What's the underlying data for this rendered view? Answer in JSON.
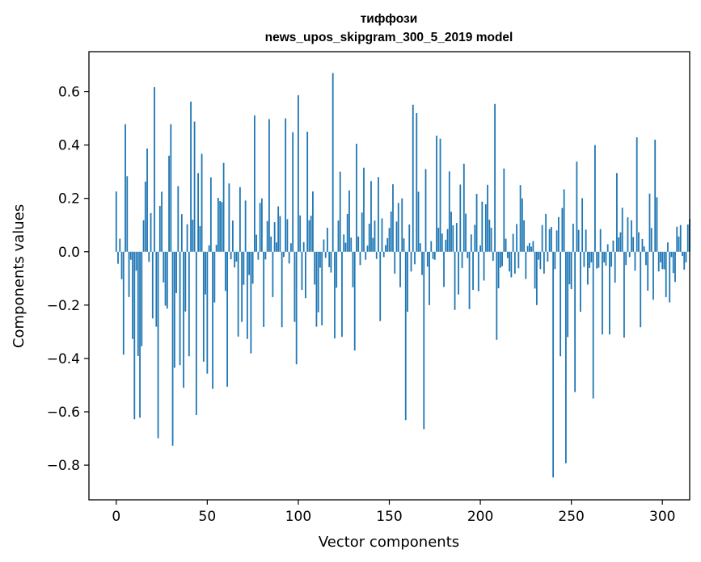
{
  "chart_data": {
    "type": "bar",
    "title": "тиффози",
    "subtitle": "news_upos_skipgram_300_5_2019 model",
    "xlabel": "Vector components",
    "ylabel": "Components values",
    "xlim": [
      -15,
      315
    ],
    "ylim": [
      -0.93,
      0.75
    ],
    "xticks": [
      0,
      50,
      100,
      150,
      200,
      250,
      300
    ],
    "xtick_labels": [
      "0",
      "50",
      "100",
      "150",
      "200",
      "250",
      "300"
    ],
    "yticks": [
      -0.8,
      -0.6,
      -0.4,
      -0.2,
      0.0,
      0.2,
      0.4,
      0.6
    ],
    "ytick_labels": [
      "−0.8",
      "−0.6",
      "−0.4",
      "−0.2",
      "0.0",
      "0.2",
      "0.4",
      "0.6"
    ],
    "grid": false,
    "bar_color": "#1f77b4",
    "values": [
      0.226,
      -0.045,
      0.049,
      -0.103,
      -0.386,
      0.478,
      0.283,
      -0.17,
      -0.03,
      -0.327,
      -0.628,
      -0.071,
      -0.391,
      -0.622,
      -0.354,
      0.118,
      0.263,
      0.387,
      -0.038,
      0.145,
      -0.25,
      0.617,
      -0.281,
      -0.699,
      0.172,
      0.225,
      -0.115,
      -0.202,
      -0.213,
      0.36,
      0.478,
      -0.727,
      -0.435,
      -0.155,
      0.246,
      -0.425,
      0.141,
      -0.51,
      -0.224,
      0.103,
      -0.392,
      0.563,
      0.12,
      0.488,
      -0.612,
      0.295,
      0.096,
      0.367,
      -0.412,
      -0.16,
      -0.457,
      0.024,
      0.279,
      -0.514,
      -0.19,
      0.026,
      0.202,
      0.19,
      0.186,
      0.333,
      -0.147,
      -0.506,
      0.256,
      -0.028,
      0.117,
      -0.059,
      -0.037,
      -0.318,
      0.242,
      -0.263,
      -0.124,
      0.192,
      -0.327,
      -0.087,
      -0.381,
      -0.12,
      0.511,
      0.064,
      -0.03,
      0.183,
      0.2,
      -0.282,
      -0.029,
      0.115,
      0.497,
      0.057,
      -0.17,
      0.111,
      0.035,
      0.17,
      0.134,
      -0.283,
      -0.02,
      0.5,
      0.122,
      -0.044,
      0.032,
      0.448,
      -0.263,
      -0.422,
      0.587,
      0.136,
      -0.143,
      0.036,
      -0.174,
      0.45,
      0.118,
      0.135,
      0.226,
      -0.123,
      -0.281,
      -0.227,
      -0.06,
      -0.276,
      0.046,
      -0.023,
      0.09,
      -0.058,
      -0.078,
      0.67,
      -0.325,
      -0.135,
      0.117,
      0.3,
      -0.319,
      0.065,
      0.034,
      0.142,
      0.23,
      0.053,
      -0.133,
      -0.37,
      0.405,
      0.057,
      -0.05,
      0.147,
      0.315,
      -0.03,
      0.023,
      0.105,
      0.265,
      0.052,
      0.117,
      -0.027,
      0.28,
      -0.26,
      0.125,
      -0.02,
      0.025,
      0.051,
      0.089,
      0.151,
      0.253,
      -0.082,
      0.113,
      0.183,
      -0.133,
      0.2,
      0.05,
      -0.631,
      -0.225,
      0.102,
      -0.074,
      0.551,
      -0.047,
      0.52,
      0.225,
      0.032,
      -0.087,
      -0.665,
      0.31,
      -0.056,
      -0.2,
      0.04,
      -0.027,
      -0.03,
      0.435,
      0.09,
      0.424,
      0.068,
      -0.132,
      0.045,
      0.085,
      0.301,
      0.15,
      0.099,
      -0.218,
      0.108,
      -0.16,
      0.252,
      -0.061,
      0.33,
      0.143,
      -0.024,
      -0.215,
      0.065,
      -0.143,
      0.101,
      0.217,
      -0.148,
      0.024,
      0.188,
      -0.108,
      0.178,
      0.251,
      0.12,
      0.09,
      -0.034,
      0.554,
      -0.33,
      -0.137,
      -0.06,
      -0.054,
      0.312,
      0.049,
      -0.024,
      -0.074,
      -0.096,
      0.067,
      -0.082,
      0.104,
      -0.062,
      0.25,
      0.2,
      0.118,
      -0.102,
      0.022,
      0.033,
      0.019,
      0.04,
      -0.138,
      -0.2,
      -0.03,
      -0.065,
      0.1,
      -0.082,
      0.142,
      -0.037,
      0.085,
      0.093,
      -0.846,
      -0.065,
      0.08,
      0.13,
      -0.392,
      0.164,
      0.234,
      -0.793,
      -0.32,
      -0.122,
      -0.14,
      0.105,
      -0.526,
      0.338,
      0.082,
      -0.225,
      0.201,
      -0.057,
      0.083,
      -0.123,
      -0.061,
      -0.04,
      -0.55,
      0.4,
      -0.063,
      -0.06,
      0.085,
      -0.31,
      -0.04,
      -0.052,
      0.028,
      -0.31,
      -0.056,
      0.042,
      -0.116,
      0.295,
      0.054,
      0.073,
      0.165,
      -0.322,
      -0.05,
      0.129,
      -0.02,
      0.118,
      0.055,
      -0.071,
      0.429,
      0.073,
      -0.283,
      0.048,
      0.02,
      -0.05,
      -0.146,
      0.218,
      0.089,
      -0.18,
      0.42,
      0.204,
      -0.074,
      -0.04,
      -0.065,
      -0.066,
      -0.17,
      0.035,
      -0.19,
      -0.02,
      -0.08,
      -0.113,
      0.094,
      0.057,
      0.1,
      -0.016,
      -0.067,
      -0.04,
      0.102,
      0.123
    ]
  }
}
